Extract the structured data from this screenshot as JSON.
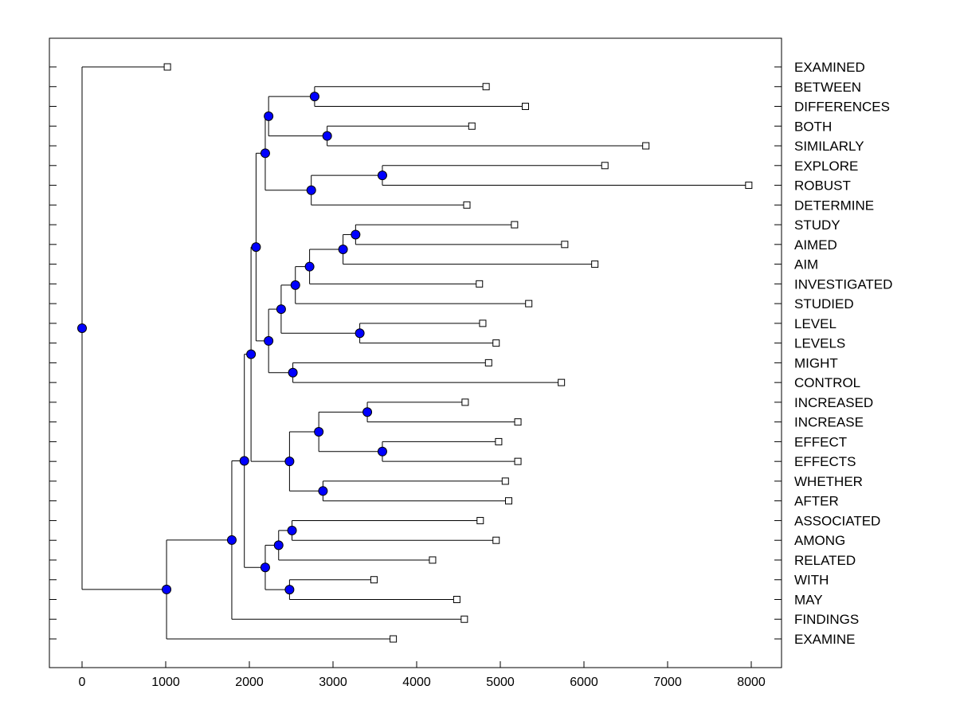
{
  "chart_data": {
    "type": "dendrogram",
    "title": "",
    "xlabel": "",
    "ylabel": "",
    "xlim": [
      -400,
      8400
    ],
    "xticks": [
      0,
      1000,
      2000,
      3000,
      4000,
      5000,
      6000,
      7000,
      8000
    ],
    "xtick_labels": [
      "0",
      "1000",
      "2000",
      "3000",
      "4000",
      "5000",
      "6000",
      "7000",
      "8000"
    ],
    "leaf_labels": [
      "EXAMINED",
      "BETWEEN",
      "DIFFERENCES",
      "BOTH",
      "SIMILARLY",
      "EXPLORE",
      "ROBUST",
      "DETERMINE",
      "STUDY",
      "AIMED",
      "AIM",
      "INVESTIGATED",
      "STUDIED",
      "LEVEL",
      "LEVELS",
      "MIGHT",
      "CONTROL",
      "INCREASED",
      "INCREASE",
      "EFFECT",
      "EFFECTS",
      "WHETHER",
      "AFTER",
      "ASSOCIATED",
      "AMONG",
      "RELATED",
      "WITH",
      "MAY",
      "FINDINGS",
      "EXAMINE"
    ],
    "leaf_values": [
      1020,
      4830,
      5300,
      4660,
      6740,
      6250,
      7970,
      4600,
      5170,
      5770,
      6130,
      4750,
      5340,
      4790,
      4950,
      4860,
      5730,
      4580,
      5210,
      4980,
      5210,
      5060,
      5100,
      4760,
      4950,
      4190,
      3490,
      4480,
      4570,
      3720
    ],
    "nodes": [
      {
        "id": "N1",
        "x": 2780,
        "children": [
          "L1",
          "L2"
        ]
      },
      {
        "id": "N2",
        "x": 2930,
        "children": [
          "L3",
          "L4"
        ]
      },
      {
        "id": "N3",
        "x": 2230,
        "children": [
          "N1",
          "N2"
        ]
      },
      {
        "id": "N4",
        "x": 3590,
        "children": [
          "L5",
          "L6"
        ]
      },
      {
        "id": "N5",
        "x": 2740,
        "children": [
          "N4",
          "L7"
        ]
      },
      {
        "id": "N6",
        "x": 2190,
        "children": [
          "N3",
          "N5"
        ]
      },
      {
        "id": "N7",
        "x": 3270,
        "children": [
          "L8",
          "L9"
        ]
      },
      {
        "id": "N8",
        "x": 3120,
        "children": [
          "N7",
          "L10"
        ]
      },
      {
        "id": "N9",
        "x": 2720,
        "children": [
          "N8",
          "L11"
        ]
      },
      {
        "id": "N10",
        "x": 2550,
        "children": [
          "N9",
          "L12"
        ]
      },
      {
        "id": "N11",
        "x": 3320,
        "children": [
          "L13",
          "L14"
        ]
      },
      {
        "id": "N12",
        "x": 2380,
        "children": [
          "N10",
          "N11"
        ]
      },
      {
        "id": "N13",
        "x": 2520,
        "children": [
          "L15",
          "L16"
        ]
      },
      {
        "id": "N14",
        "x": 2230,
        "children": [
          "N12",
          "N13"
        ]
      },
      {
        "id": "N15",
        "x": 2080,
        "children": [
          "N6",
          "N14"
        ]
      },
      {
        "id": "N16",
        "x": 3410,
        "children": [
          "L17",
          "L18"
        ]
      },
      {
        "id": "N17",
        "x": 3590,
        "children": [
          "L19",
          "L20"
        ]
      },
      {
        "id": "N18",
        "x": 2830,
        "children": [
          "N16",
          "N17"
        ]
      },
      {
        "id": "N19",
        "x": 2880,
        "children": [
          "L21",
          "L22"
        ]
      },
      {
        "id": "N20",
        "x": 2480,
        "children": [
          "N18",
          "N19"
        ]
      },
      {
        "id": "N21",
        "x": 2020,
        "children": [
          "N15",
          "N20"
        ]
      },
      {
        "id": "N22",
        "x": 2510,
        "children": [
          "L23",
          "L24"
        ]
      },
      {
        "id": "N23",
        "x": 2350,
        "children": [
          "N22",
          "L25"
        ]
      },
      {
        "id": "N24",
        "x": 2480,
        "children": [
          "L26",
          "L27"
        ]
      },
      {
        "id": "N25",
        "x": 2190,
        "children": [
          "N23",
          "N24"
        ]
      },
      {
        "id": "N26",
        "x": 1940,
        "children": [
          "N21",
          "N25"
        ]
      },
      {
        "id": "N27",
        "x": 1790,
        "children": [
          "N26",
          "L28"
        ]
      },
      {
        "id": "N28",
        "x": 1010,
        "children": [
          "N27",
          "L29"
        ]
      },
      {
        "id": "N29",
        "x": 0,
        "children": [
          "L0",
          "N28"
        ]
      }
    ],
    "colors": {
      "node_fill": "#0000ff",
      "line": "#000000",
      "leaf_fill": "#ffffff"
    }
  }
}
